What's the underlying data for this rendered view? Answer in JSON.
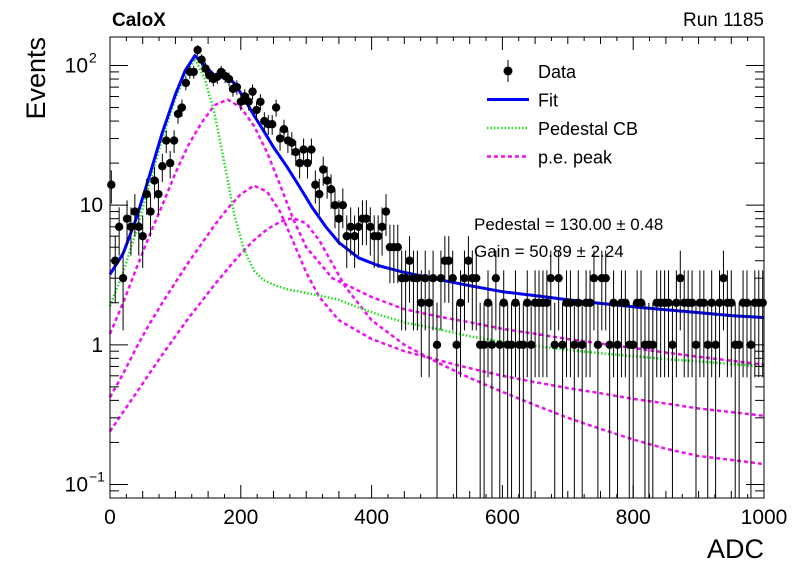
{
  "header": {
    "experiment": "CaloX",
    "run": "Run 1185"
  },
  "chart_data": {
    "type": "scatter",
    "title": "",
    "xlabel": "ADC",
    "ylabel": "Events",
    "xlim": [
      0,
      1000
    ],
    "ylim": [
      0.08,
      160
    ],
    "y_scale": "log",
    "x_ticks": [
      0,
      200,
      400,
      600,
      800,
      1000
    ],
    "y_ticks": [
      {
        "value": 0.1,
        "base": "10",
        "exp": "−1"
      },
      {
        "value": 1,
        "base": "1",
        "exp": ""
      },
      {
        "value": 10,
        "base": "10",
        "exp": ""
      },
      {
        "value": 100,
        "base": "10",
        "exp": "2"
      }
    ],
    "legend": {
      "position": "top-right",
      "entries": [
        {
          "label": "Data",
          "style": "marker",
          "color": "#000000"
        },
        {
          "label": "Fit",
          "style": "solid",
          "color": "#0000ff"
        },
        {
          "label": "Pedestal CB",
          "style": "dotted",
          "color": "#22dd22"
        },
        {
          "label": "p.e. peak",
          "style": "dashed",
          "color": "#ee11ee"
        }
      ]
    },
    "annotations": [
      "Pedestal = 130.00 ± 0.48",
      "Gain = 50.89 ± 2.24"
    ],
    "pedestal_mean": 130.0,
    "gain": 50.89,
    "series": [
      {
        "name": "Data",
        "x": [
          2,
          8,
          14,
          20,
          26,
          32,
          38,
          44,
          50,
          56,
          62,
          68,
          74,
          80,
          86,
          92,
          98,
          104,
          110,
          116,
          122,
          128,
          134,
          140,
          146,
          152,
          158,
          164,
          170,
          176,
          182,
          188,
          194,
          200,
          206,
          212,
          218,
          224,
          230,
          236,
          242,
          248,
          254,
          260,
          266,
          272,
          278,
          284,
          290,
          296,
          302,
          308,
          314,
          320,
          326,
          332,
          338,
          344,
          350,
          356,
          362,
          368,
          374,
          380,
          386,
          392,
          398,
          404,
          410,
          416,
          422,
          428,
          434,
          440,
          446,
          452,
          458,
          464,
          470,
          476,
          482,
          488,
          494,
          500,
          506,
          512,
          518,
          524,
          530,
          536,
          542,
          548,
          554,
          560,
          566,
          572,
          578,
          584,
          590,
          596,
          602,
          608,
          614,
          620,
          626,
          632,
          638,
          644,
          650,
          656,
          662,
          668,
          674,
          680,
          686,
          692,
          698,
          704,
          710,
          716,
          722,
          728,
          734,
          740,
          746,
          752,
          758,
          764,
          770,
          776,
          782,
          788,
          794,
          800,
          806,
          812,
          818,
          824,
          830,
          836,
          842,
          848,
          854,
          860,
          866,
          872,
          878,
          884,
          890,
          896,
          902,
          908,
          914,
          920,
          926,
          932,
          938,
          944,
          950,
          956,
          962,
          968,
          974,
          980,
          986,
          992,
          998
        ],
        "y": [
          14,
          4,
          7,
          3,
          8,
          7,
          9,
          7,
          6,
          12,
          9,
          15,
          12,
          19,
          29,
          20,
          29,
          45,
          50,
          75,
          90,
          90,
          129,
          110,
          95,
          85,
          80,
          83,
          90,
          84,
          80,
          68,
          70,
          55,
          60,
          55,
          65,
          48,
          55,
          40,
          38,
          38,
          50,
          30,
          35,
          29,
          28,
          24,
          20,
          25,
          20,
          25,
          14,
          12,
          18,
          15,
          13,
          10,
          8,
          10,
          6,
          7,
          6,
          7,
          8,
          8,
          7,
          6,
          6,
          7,
          9,
          5,
          5,
          5,
          3,
          3,
          4,
          3,
          3,
          2,
          3,
          2,
          3,
          1,
          3,
          4,
          4,
          3,
          1,
          2,
          3,
          4,
          3,
          3,
          1,
          1,
          2,
          1,
          3,
          1,
          2,
          1,
          1,
          2,
          1,
          1,
          2,
          1,
          2,
          2,
          2,
          2,
          3,
          1,
          3,
          1,
          2,
          2,
          1,
          2,
          1,
          2,
          2,
          3,
          1,
          3,
          3,
          1,
          2,
          1,
          2,
          2,
          1,
          1,
          2,
          2,
          1,
          1,
          1,
          2,
          2,
          2,
          2,
          1,
          2,
          3,
          2,
          2,
          2,
          1,
          2,
          2,
          1,
          2,
          1,
          2,
          3,
          2,
          2,
          1,
          1,
          2,
          2,
          1,
          2,
          2,
          2
        ]
      },
      {
        "name": "Fit",
        "x": [
          0,
          20,
          40,
          60,
          80,
          100,
          115,
          130,
          145,
          160,
          175,
          190,
          205,
          220,
          235,
          250,
          270,
          290,
          310,
          330,
          350,
          380,
          410,
          450,
          500,
          550,
          600,
          650,
          700,
          750,
          800,
          850,
          900,
          950,
          1000
        ],
        "y": [
          3.2,
          4.5,
          8,
          16,
          33,
          62,
          92,
          118,
          100,
          85,
          86,
          75,
          58,
          44,
          34,
          26,
          19,
          13.5,
          9.5,
          7,
          5.4,
          4.2,
          3.7,
          3.3,
          2.95,
          2.65,
          2.4,
          2.25,
          2.1,
          1.98,
          1.87,
          1.78,
          1.7,
          1.62,
          1.57
        ]
      },
      {
        "name": "Pedestal CB",
        "x": [
          0,
          20,
          40,
          60,
          80,
          100,
          115,
          130,
          145,
          160,
          175,
          190,
          205,
          220,
          235,
          250,
          270,
          290,
          310,
          330,
          350,
          380,
          410,
          450,
          500,
          550,
          600,
          650,
          700,
          750,
          800,
          850,
          900,
          950,
          1000
        ],
        "y": [
          1.9,
          3.3,
          6.5,
          14,
          30,
          58,
          85,
          112,
          80,
          45,
          20,
          8.5,
          4.8,
          3.4,
          2.9,
          2.7,
          2.5,
          2.4,
          2.3,
          2.2,
          2.1,
          1.85,
          1.65,
          1.45,
          1.3,
          1.15,
          1.05,
          0.98,
          0.92,
          0.87,
          0.83,
          0.79,
          0.76,
          0.73,
          0.7
        ]
      },
      {
        "name": "p.e. peak 1",
        "x": [
          0,
          20,
          40,
          60,
          80,
          100,
          120,
          140,
          160,
          180,
          200,
          220,
          240,
          260,
          280,
          300,
          340,
          400,
          450,
          500,
          550,
          600,
          650,
          700,
          750,
          800,
          850,
          900,
          950,
          1000
        ],
        "y": [
          1.2,
          2.0,
          3.5,
          6.0,
          10,
          17,
          27,
          39,
          52,
          57,
          50,
          37,
          24,
          14,
          8,
          5,
          3,
          2.2,
          1.8,
          1.6,
          1.45,
          1.3,
          1.2,
          1.1,
          1.02,
          0.95,
          0.88,
          0.82,
          0.77,
          0.72
        ]
      },
      {
        "name": "p.e. peak 2",
        "x": [
          0,
          20,
          40,
          60,
          80,
          100,
          120,
          140,
          160,
          180,
          200,
          220,
          240,
          260,
          280,
          300,
          320,
          350,
          400,
          450,
          500,
          550,
          600,
          650,
          700,
          750,
          800,
          850,
          900,
          950,
          1000
        ],
        "y": [
          0.42,
          0.62,
          0.95,
          1.4,
          2.0,
          2.8,
          3.9,
          5.3,
          7.2,
          9.5,
          12,
          13.8,
          12.5,
          9,
          5.5,
          3.3,
          2.2,
          1.5,
          1.1,
          0.9,
          0.78,
          0.68,
          0.6,
          0.54,
          0.49,
          0.45,
          0.41,
          0.38,
          0.35,
          0.33,
          0.31
        ]
      },
      {
        "name": "p.e. peak 3",
        "x": [
          0,
          20,
          40,
          60,
          80,
          100,
          120,
          140,
          160,
          180,
          200,
          220,
          240,
          260,
          280,
          300,
          320,
          340,
          360,
          400,
          450,
          500,
          550,
          600,
          650,
          700,
          750,
          800,
          850,
          900,
          950,
          1000
        ],
        "y": [
          0.24,
          0.33,
          0.45,
          0.62,
          0.85,
          1.15,
          1.55,
          2.05,
          2.7,
          3.5,
          4.5,
          5.6,
          6.7,
          7.6,
          8.1,
          7.4,
          5.6,
          3.8,
          2.6,
          1.5,
          1.0,
          0.75,
          0.58,
          0.46,
          0.37,
          0.3,
          0.25,
          0.21,
          0.18,
          0.16,
          0.15,
          0.14
        ]
      }
    ]
  }
}
